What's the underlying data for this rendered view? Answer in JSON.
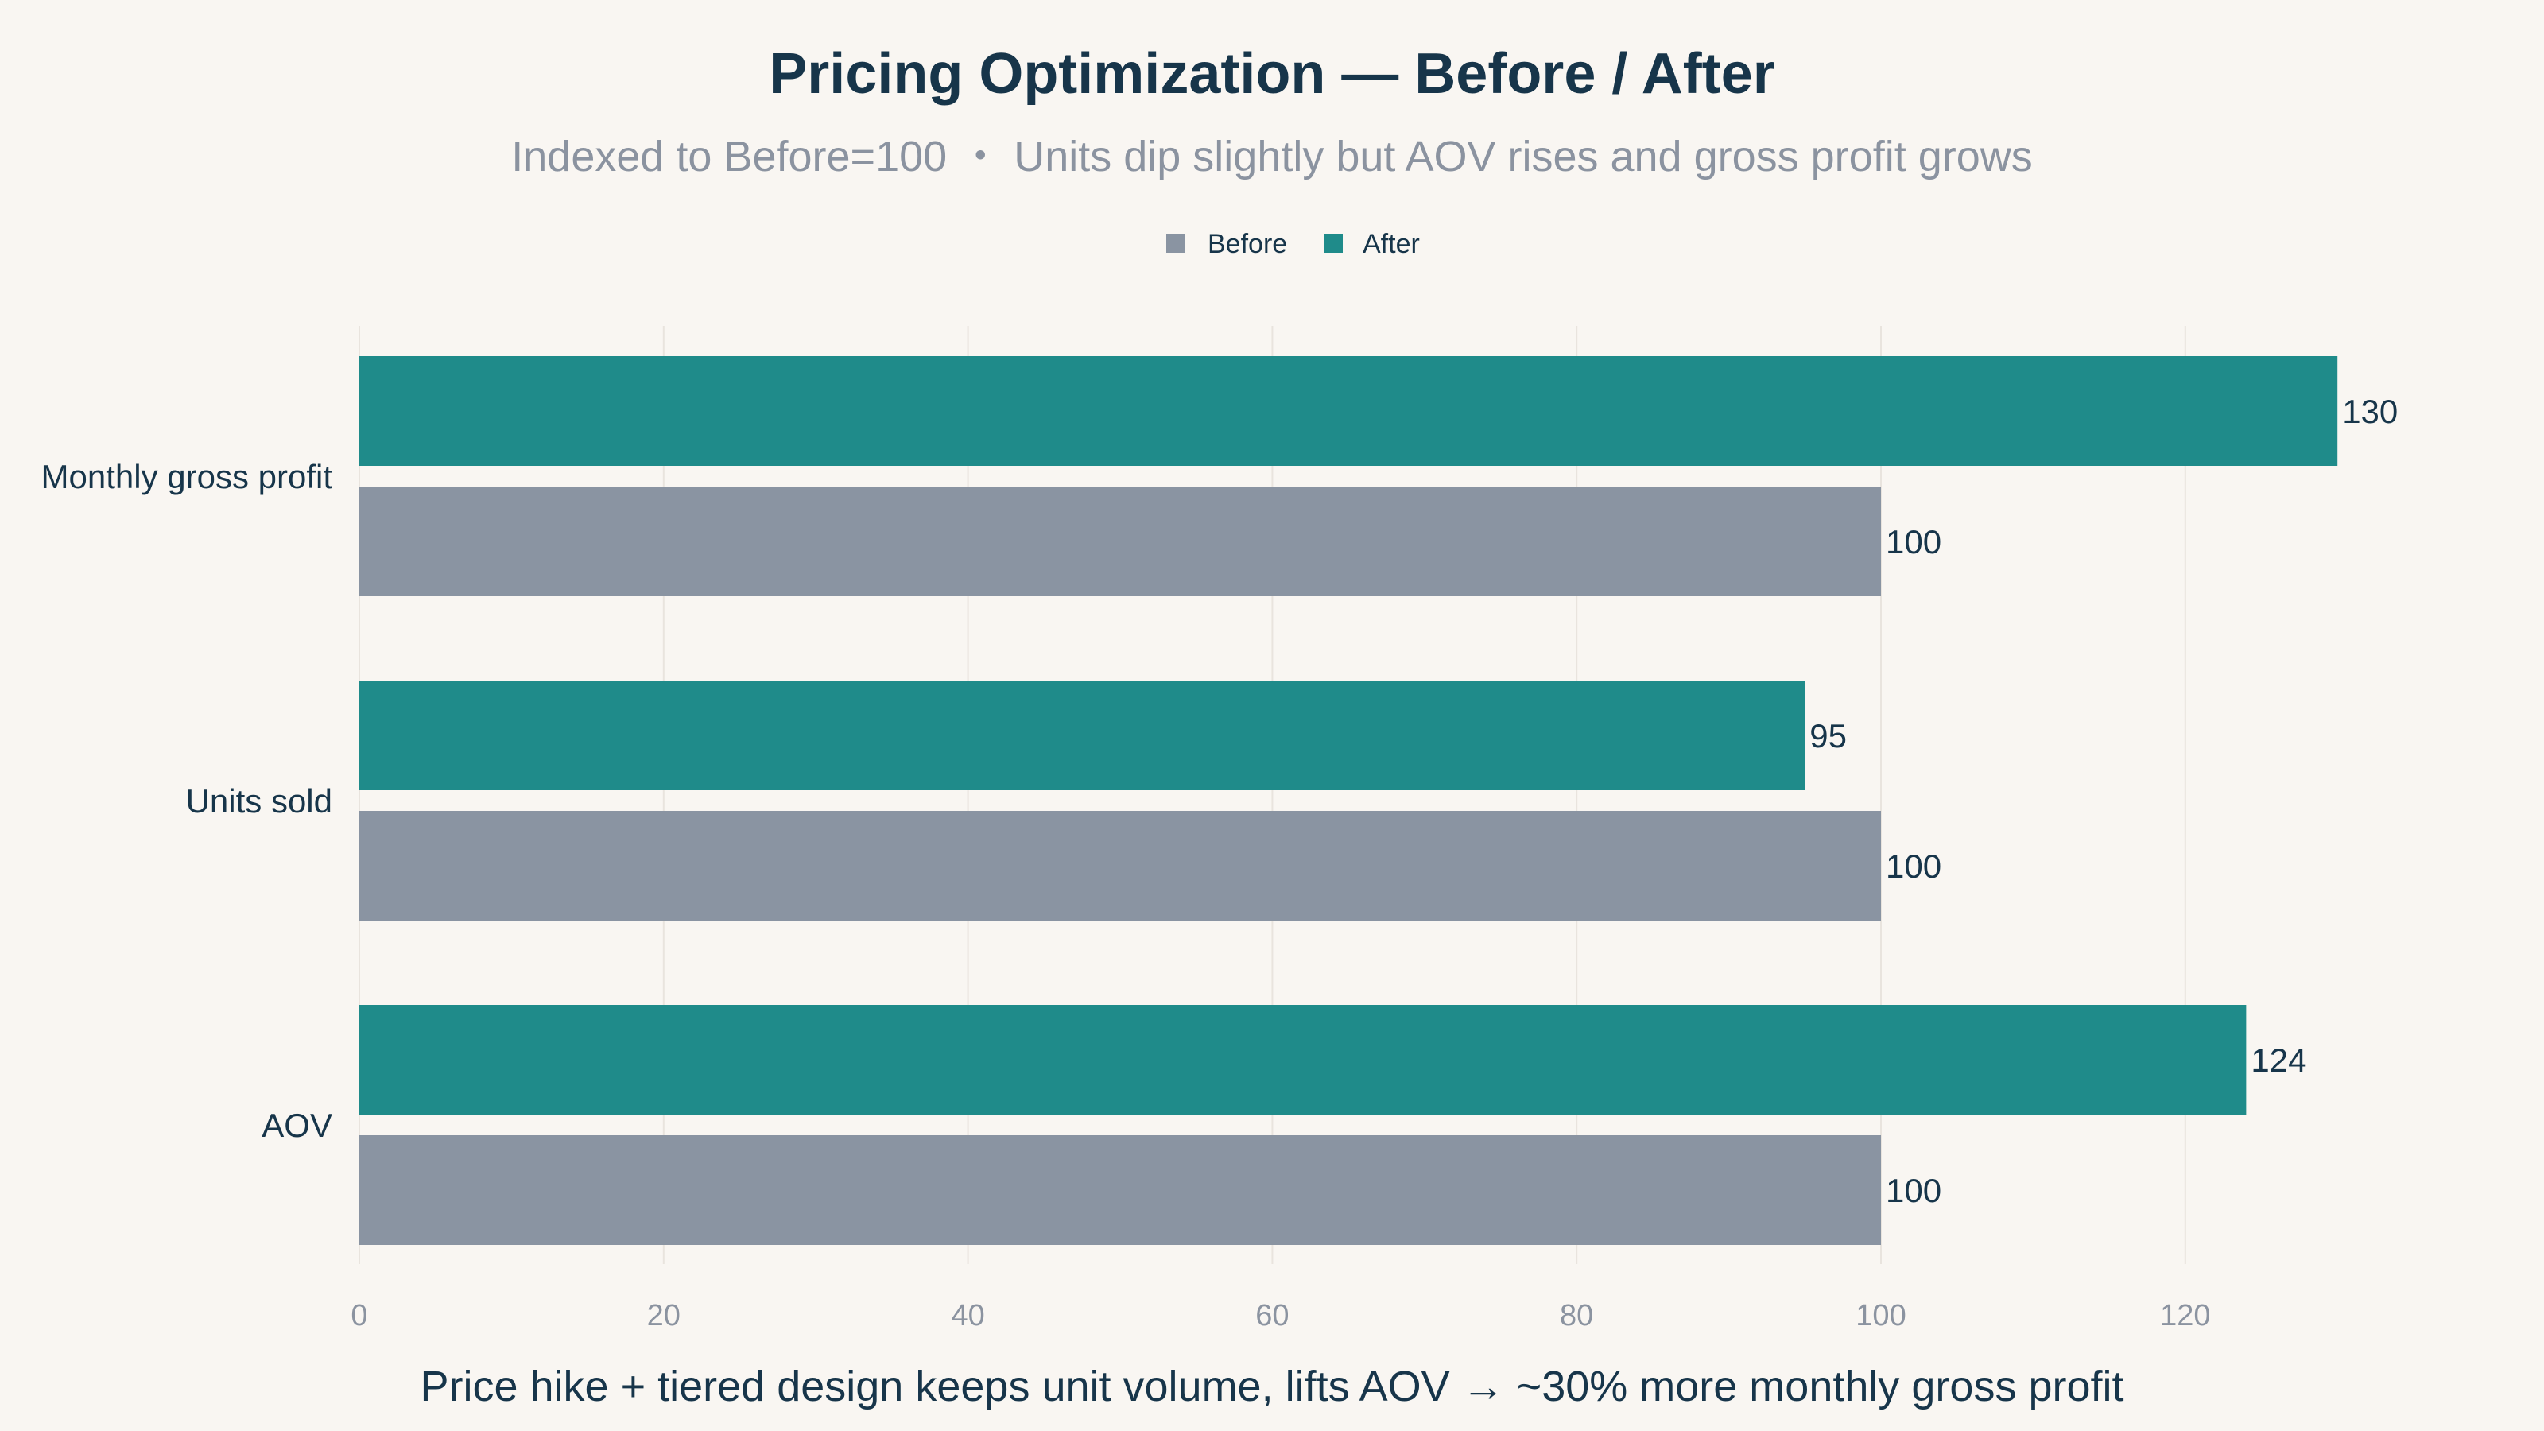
{
  "colors": {
    "background": "#f9f6f2",
    "title": "#17354a",
    "subtitle": "#8b93a0",
    "text": "#17354a",
    "tick": "#8b93a0",
    "grid": "#e9e4de",
    "before": "#8a94a2",
    "after": "#1f8b8a"
  },
  "chart_data": {
    "type": "bar",
    "orientation": "horizontal",
    "title": "Pricing Optimization — Before / After",
    "subtitle": "Indexed to Before=100 ・ Units dip slightly but AOV rises and gross profit grows",
    "caption": "Price hike + tiered design keeps unit volume, lifts AOV → ~30% more monthly gross profit",
    "categories": [
      "Monthly gross profit",
      "Units sold",
      "AOV"
    ],
    "series": [
      {
        "name": "After",
        "values": [
          130,
          95,
          124
        ]
      },
      {
        "name": "Before",
        "values": [
          100,
          100,
          100
        ]
      }
    ],
    "legend": {
      "placement": "top-center",
      "entries": [
        "Before",
        "After"
      ]
    },
    "xlim": [
      0,
      130
    ],
    "xticks": [
      "0",
      "20",
      "40",
      "60",
      "80",
      "100",
      "120"
    ],
    "grid": true
  }
}
